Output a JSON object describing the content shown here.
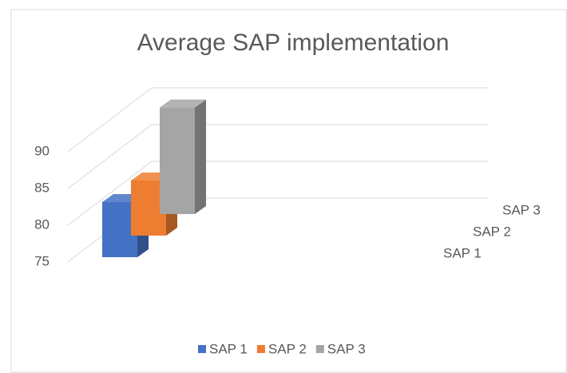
{
  "chart_data": {
    "type": "bar3d",
    "title": "Average SAP implementation",
    "series": [
      {
        "name": "SAP 1",
        "color": "#4472c4",
        "values": [
          82.5
        ]
      },
      {
        "name": "SAP 2",
        "color": "#ed7d31",
        "values": [
          82.5
        ]
      },
      {
        "name": "SAP 3",
        "color": "#a5a5a5",
        "values": [
          89.5
        ]
      }
    ],
    "ylim": [
      75,
      90
    ],
    "yticks": [
      75,
      80,
      85,
      90
    ],
    "grid": true,
    "legend": "bottom"
  }
}
